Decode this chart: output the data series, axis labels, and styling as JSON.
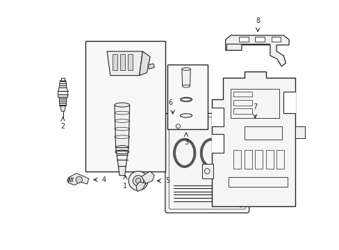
{
  "bg_color": "#ffffff",
  "line_color": "#222222",
  "figsize": [
    4.89,
    3.6
  ],
  "dpi": 100
}
